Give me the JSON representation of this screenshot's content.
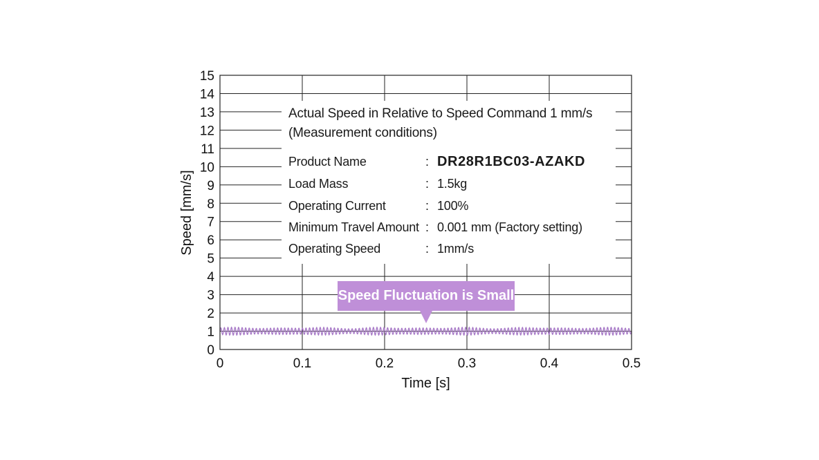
{
  "chart_data": {
    "type": "line",
    "title": "Actual Speed in Relative to Speed Command 1 mm/s",
    "xlabel": "Time [s]",
    "ylabel": "Speed [mm/s]",
    "xlim": [
      0,
      0.5
    ],
    "ylim": [
      0,
      15
    ],
    "xticks": [
      "0",
      "0.1",
      "0.2",
      "0.3",
      "0.4",
      "0.5"
    ],
    "yticks": [
      "0",
      "1",
      "2",
      "3",
      "4",
      "5",
      "6",
      "7",
      "8",
      "9",
      "10",
      "11",
      "12",
      "13",
      "14",
      "15"
    ],
    "grid": true,
    "series": [
      {
        "color": "#a97cc8",
        "mean": 1.0,
        "oscillation_amplitude": 0.22,
        "x": [
          0,
          0.05,
          0.1,
          0.15,
          0.2,
          0.25,
          0.3,
          0.35,
          0.4,
          0.45,
          0.5
        ],
        "values": [
          1.0,
          1.0,
          1.0,
          1.0,
          1.0,
          1.0,
          1.0,
          1.0,
          1.0,
          1.0,
          1.0
        ]
      }
    ],
    "annotation": "Speed Fluctuation is Small"
  },
  "info": {
    "title_line1": "Actual Speed in Relative to Speed Command 1 mm/s",
    "title_line2": "(Measurement conditions)",
    "rows": [
      {
        "label": "Product Name",
        "colon": ":",
        "value": "DR28R1BC03-AZAKD"
      },
      {
        "label": "Load Mass",
        "colon": ":",
        "value": "1.5kg"
      },
      {
        "label": "Operating Current",
        "colon": ":",
        "value": "100%"
      },
      {
        "label": "Minimum Travel Amount",
        "colon": ":",
        "value": "0.001 mm (Factory setting)"
      },
      {
        "label": "Operating Speed",
        "colon": ":",
        "value": "1mm/s"
      }
    ]
  },
  "callout": {
    "text": "Speed Fluctuation is Small",
    "color": "#bf8fd8"
  }
}
